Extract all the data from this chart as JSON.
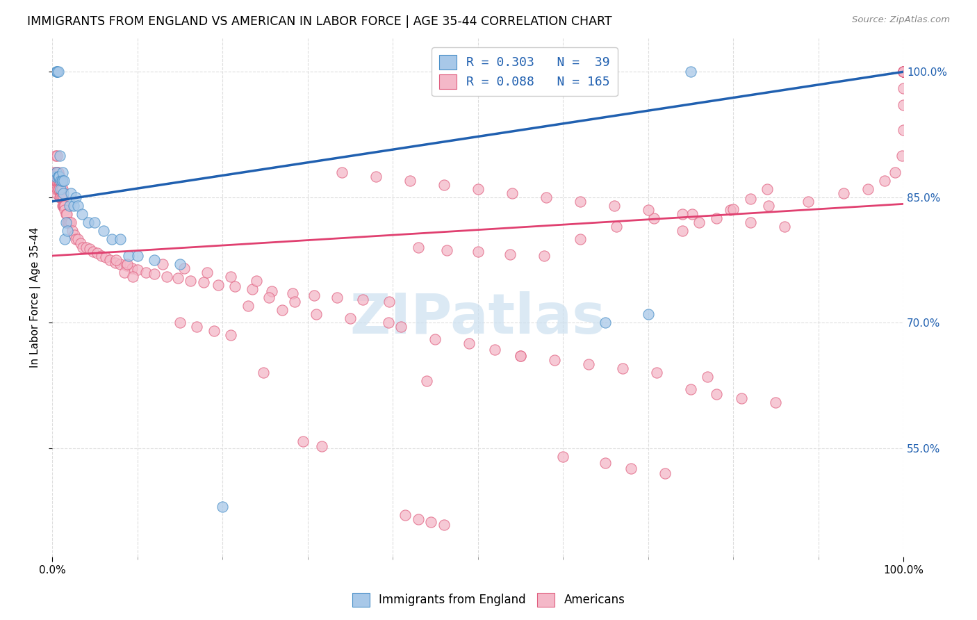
{
  "title": "IMMIGRANTS FROM ENGLAND VS AMERICAN IN LABOR FORCE | AGE 35-44 CORRELATION CHART",
  "source": "Source: ZipAtlas.com",
  "ylabel": "In Labor Force | Age 35-44",
  "legend_r_blue": "R = 0.303",
  "legend_n_blue": "N =  39",
  "legend_r_pink": "R = 0.088",
  "legend_n_pink": "N = 165",
  "blue_fill": "#a8c8e8",
  "pink_fill": "#f4b8c8",
  "blue_edge": "#4a90c8",
  "pink_edge": "#e06080",
  "line_blue_color": "#2060b0",
  "line_pink_color": "#e04070",
  "watermark_color": "#cce0f0",
  "y_tick_values": [
    0.55,
    0.7,
    0.85,
    1.0
  ],
  "xlim": [
    0.0,
    1.0
  ],
  "ylim": [
    0.42,
    1.04
  ],
  "blue_line_x": [
    0.0,
    1.0
  ],
  "blue_line_y": [
    0.845,
    1.0
  ],
  "pink_line_x": [
    0.0,
    1.0
  ],
  "pink_line_y": [
    0.78,
    0.842
  ],
  "blue_scatter_x": [
    0.004,
    0.005,
    0.005,
    0.006,
    0.006,
    0.007,
    0.007,
    0.007,
    0.008,
    0.009,
    0.01,
    0.01,
    0.011,
    0.012,
    0.012,
    0.013,
    0.014,
    0.015,
    0.016,
    0.018,
    0.02,
    0.022,
    0.025,
    0.028,
    0.03,
    0.035,
    0.042,
    0.05,
    0.06,
    0.07,
    0.08,
    0.09,
    0.1,
    0.12,
    0.15,
    0.2,
    0.65,
    0.7,
    0.75
  ],
  "blue_scatter_y": [
    0.875,
    0.88,
    1.0,
    1.0,
    1.0,
    0.875,
    0.875,
    1.0,
    0.875,
    0.9,
    0.87,
    0.86,
    0.87,
    0.88,
    0.87,
    0.855,
    0.87,
    0.8,
    0.82,
    0.81,
    0.84,
    0.855,
    0.84,
    0.85,
    0.84,
    0.83,
    0.82,
    0.82,
    0.81,
    0.8,
    0.8,
    0.78,
    0.78,
    0.775,
    0.77,
    0.48,
    0.7,
    0.71,
    1.0
  ],
  "pink_scatter_x": [
    0.002,
    0.003,
    0.003,
    0.004,
    0.004,
    0.005,
    0.005,
    0.005,
    0.006,
    0.006,
    0.006,
    0.006,
    0.007,
    0.007,
    0.007,
    0.008,
    0.008,
    0.009,
    0.009,
    0.01,
    0.01,
    0.011,
    0.011,
    0.012,
    0.012,
    0.013,
    0.013,
    0.014,
    0.015,
    0.015,
    0.016,
    0.017,
    0.018,
    0.019,
    0.02,
    0.022,
    0.024,
    0.026,
    0.028,
    0.03,
    0.033,
    0.036,
    0.04,
    0.044,
    0.048,
    0.053,
    0.058,
    0.063,
    0.068,
    0.074,
    0.08,
    0.087,
    0.094,
    0.1,
    0.11,
    0.12,
    0.135,
    0.148,
    0.162,
    0.178,
    0.195,
    0.215,
    0.235,
    0.258,
    0.282,
    0.308,
    0.335,
    0.365,
    0.396,
    0.43,
    0.464,
    0.5,
    0.538,
    0.578,
    0.62,
    0.663,
    0.707,
    0.752,
    0.797,
    0.842,
    0.888,
    0.93,
    0.958,
    0.978,
    0.99,
    0.998,
    1.0,
    1.0,
    1.0,
    1.0,
    1.0,
    1.0,
    1.0,
    1.0,
    1.0,
    1.0,
    0.84,
    0.82,
    0.8,
    0.76,
    0.74,
    0.34,
    0.38,
    0.42,
    0.46,
    0.5,
    0.54,
    0.58,
    0.62,
    0.66,
    0.7,
    0.74,
    0.78,
    0.82,
    0.86,
    0.23,
    0.27,
    0.31,
    0.35,
    0.13,
    0.155,
    0.182,
    0.21,
    0.24,
    0.45,
    0.49,
    0.52,
    0.55,
    0.085,
    0.095,
    0.255,
    0.285,
    0.075,
    0.088,
    0.15,
    0.17,
    0.19,
    0.21,
    0.395,
    0.41,
    0.248,
    0.44,
    0.6,
    0.65,
    0.68,
    0.72,
    0.75,
    0.78,
    0.81,
    0.85,
    0.55,
    0.59,
    0.63,
    0.67,
    0.71,
    0.77,
    0.415,
    0.43,
    0.445,
    0.46,
    0.295,
    0.317
  ],
  "pink_scatter_y": [
    0.88,
    0.87,
    0.86,
    0.9,
    0.86,
    0.88,
    0.87,
    0.855,
    0.9,
    0.88,
    0.87,
    0.86,
    0.88,
    0.87,
    0.86,
    0.87,
    0.86,
    0.875,
    0.85,
    0.87,
    0.85,
    0.86,
    0.85,
    0.86,
    0.84,
    0.85,
    0.84,
    0.84,
    0.84,
    0.835,
    0.83,
    0.83,
    0.82,
    0.82,
    0.82,
    0.82,
    0.81,
    0.805,
    0.8,
    0.8,
    0.795,
    0.79,
    0.79,
    0.788,
    0.785,
    0.783,
    0.78,
    0.778,
    0.775,
    0.772,
    0.77,
    0.768,
    0.765,
    0.763,
    0.76,
    0.758,
    0.755,
    0.753,
    0.75,
    0.748,
    0.745,
    0.743,
    0.74,
    0.738,
    0.735,
    0.733,
    0.73,
    0.728,
    0.725,
    0.79,
    0.787,
    0.785,
    0.782,
    0.78,
    0.8,
    0.815,
    0.825,
    0.83,
    0.835,
    0.84,
    0.845,
    0.855,
    0.86,
    0.87,
    0.88,
    0.9,
    0.93,
    0.96,
    0.98,
    1.0,
    1.0,
    1.0,
    1.0,
    1.0,
    1.0,
    1.0,
    0.86,
    0.848,
    0.836,
    0.82,
    0.81,
    0.88,
    0.875,
    0.87,
    0.865,
    0.86,
    0.855,
    0.85,
    0.845,
    0.84,
    0.835,
    0.83,
    0.825,
    0.82,
    0.815,
    0.72,
    0.715,
    0.71,
    0.705,
    0.77,
    0.765,
    0.76,
    0.755,
    0.75,
    0.68,
    0.675,
    0.668,
    0.66,
    0.76,
    0.755,
    0.73,
    0.725,
    0.775,
    0.77,
    0.7,
    0.695,
    0.69,
    0.685,
    0.7,
    0.695,
    0.64,
    0.63,
    0.54,
    0.532,
    0.526,
    0.52,
    0.62,
    0.615,
    0.61,
    0.605,
    0.66,
    0.655,
    0.65,
    0.645,
    0.64,
    0.635,
    0.47,
    0.465,
    0.462,
    0.458,
    0.558,
    0.552
  ]
}
